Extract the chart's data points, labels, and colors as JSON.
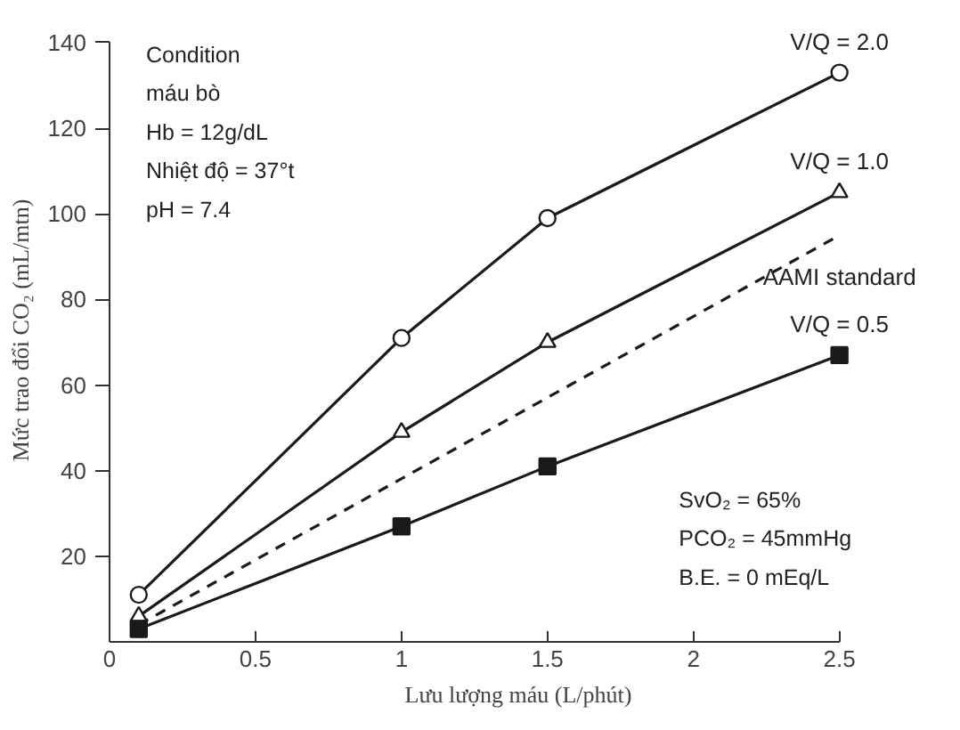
{
  "chart_data": {
    "type": "line",
    "xlabel": "Lưu lượng máu (L/phút)",
    "ylabel": "Mức trao đổi CO₂ (mL/mtn)",
    "xlim": [
      0,
      2.5
    ],
    "ylim": [
      0,
      140
    ],
    "xticks": [
      0,
      0.5,
      1,
      1.5,
      2,
      2.5
    ],
    "yticks": [
      20,
      40,
      60,
      80,
      100,
      120,
      140
    ],
    "grid": false,
    "series": [
      {
        "name": "V/Q = 2.0",
        "color": "#1a1a1a",
        "marker": "circle",
        "line_style": "solid",
        "x": [
          0.1,
          1,
          1.5,
          2.5
        ],
        "values": [
          11,
          71,
          99,
          133
        ]
      },
      {
        "name": "V/Q = 1.0",
        "color": "#1a1a1a",
        "marker": "triangle",
        "line_style": "solid",
        "x": [
          0.1,
          1,
          1.5,
          2.5
        ],
        "values": [
          6,
          49,
          70,
          105
        ]
      },
      {
        "name": "AAMI standard",
        "color": "#1a1a1a",
        "marker": "none",
        "line_style": "dashed",
        "x": [
          0.1,
          2.5
        ],
        "values": [
          4,
          95
        ]
      },
      {
        "name": "V/Q = 0.5",
        "color": "#1a1a1a",
        "marker": "square",
        "line_style": "solid",
        "x": [
          0.1,
          1,
          1.5,
          2.5
        ],
        "values": [
          3,
          27,
          41,
          67
        ]
      }
    ],
    "annotations": [
      "Condition\nmáu bò\nHb        = 12g/dL\nNhiệt độ  = 37°t\npH        = 7.4",
      "SvO₂    = 65%\nPCO₂    = 45mmHg\nB.E.     = 0 mEq/L"
    ]
  }
}
